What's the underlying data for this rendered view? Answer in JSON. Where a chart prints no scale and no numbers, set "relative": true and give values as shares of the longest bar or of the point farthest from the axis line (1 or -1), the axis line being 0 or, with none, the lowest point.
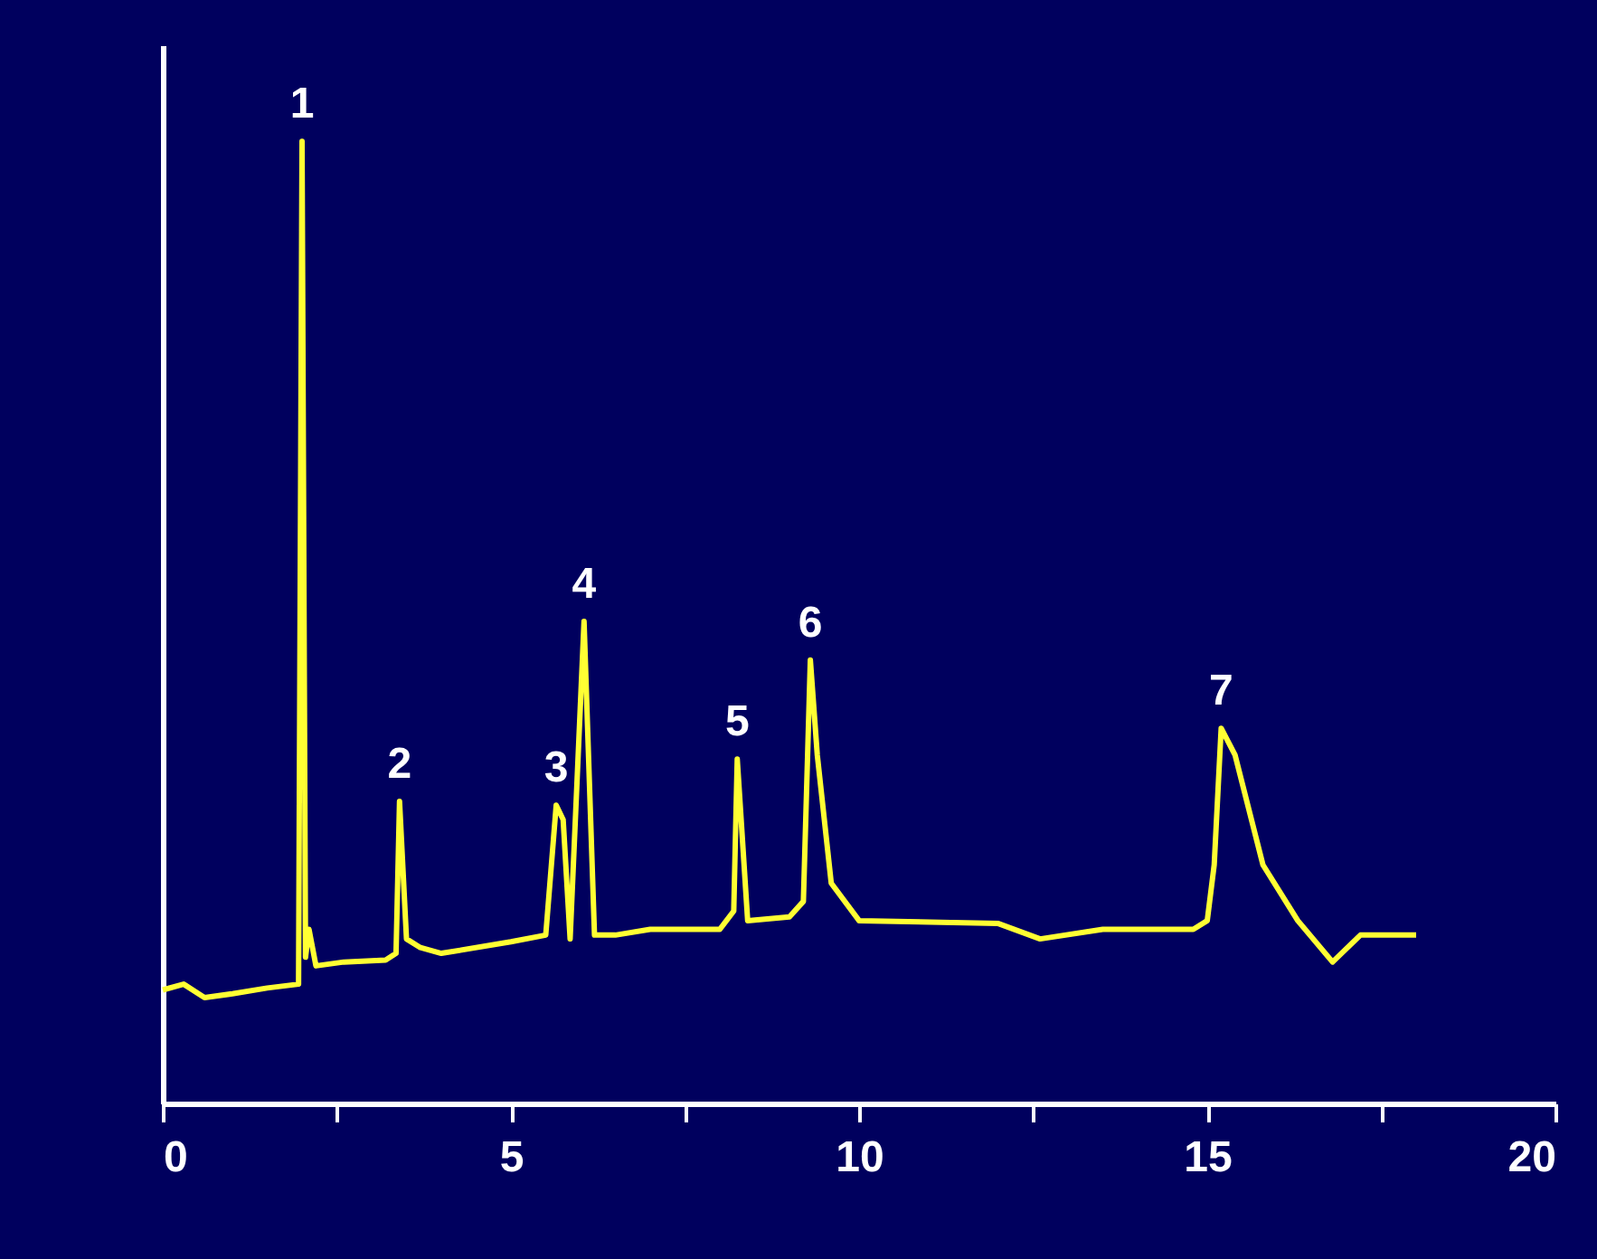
{
  "chart_data": {
    "type": "line",
    "relative": true,
    "x": [
      0,
      0.3,
      0.6,
      1.0,
      1.5,
      1.95,
      2.0,
      2.05,
      2.1,
      2.2,
      2.6,
      3.2,
      3.35,
      3.4,
      3.5,
      3.7,
      4.0,
      5.0,
      5.5,
      5.65,
      5.75,
      5.85,
      6.05,
      6.2,
      6.5,
      7.0,
      8.0,
      8.2,
      8.25,
      8.4,
      9.0,
      9.2,
      9.3,
      9.4,
      9.6,
      10.0,
      12.0,
      12.6,
      13.5,
      14.8,
      15.0,
      15.1,
      15.2,
      15.4,
      15.8,
      16.3,
      16.8,
      17.2,
      18.0
    ],
    "series": [
      {
        "color": "#ffff33",
        "values": [
          0.118,
          0.124,
          0.11,
          0.114,
          0.12,
          0.124,
          1.0,
          0.152,
          0.181,
          0.143,
          0.147,
          0.149,
          0.156,
          0.314,
          0.171,
          0.162,
          0.156,
          0.168,
          0.175,
          0.31,
          0.295,
          0.171,
          0.501,
          0.175,
          0.175,
          0.181,
          0.181,
          0.2,
          0.358,
          0.19,
          0.194,
          0.21,
          0.461,
          0.362,
          0.229,
          0.19,
          0.187,
          0.171,
          0.181,
          0.181,
          0.19,
          0.248,
          0.39,
          0.362,
          0.248,
          0.19,
          0.147,
          0.175,
          0.175
        ]
      }
    ],
    "xlim": [
      0,
      20
    ],
    "xticks": [
      0,
      {
        "value": 2.5,
        "label": null
      },
      5,
      {
        "value": 7.5,
        "label": null
      },
      10,
      {
        "value": 12.5,
        "label": null
      },
      15,
      {
        "value": 17.5,
        "label": null
      },
      20
    ],
    "tick_labels": "x",
    "grid": false,
    "marker": "none",
    "line_style": "solid",
    "annotations": [
      {
        "text": "1",
        "x": 2.0,
        "y": 1.0
      },
      {
        "text": "2",
        "x": 3.4,
        "y": 0.314
      },
      {
        "text": "3",
        "x": 5.65,
        "y": 0.31
      },
      {
        "text": "4",
        "x": 6.05,
        "y": 0.501
      },
      {
        "text": "5",
        "x": 8.25,
        "y": 0.358
      },
      {
        "text": "6",
        "x": 9.3,
        "y": 0.461
      },
      {
        "text": "7",
        "x": 15.2,
        "y": 0.39
      }
    ]
  }
}
